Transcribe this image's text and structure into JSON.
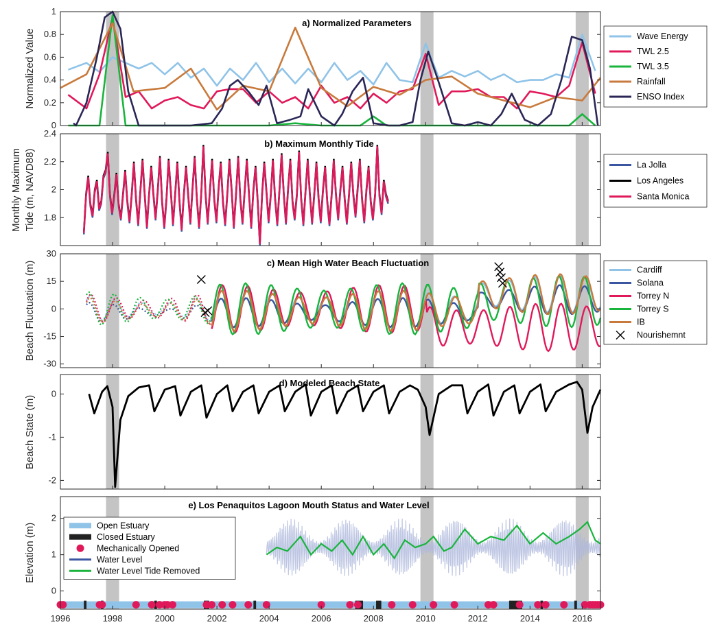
{
  "chart_data": [
    {
      "type": "line",
      "title": "a) Normalized Parameters",
      "ylabel": "Normalized Value",
      "xlim": [
        1996,
        2016.7
      ],
      "ylim": [
        0,
        1
      ],
      "yticks": [
        "0",
        "0.2",
        "0.4",
        "0.6",
        "0.8",
        "1"
      ],
      "legend_position": "outside-right",
      "series": [
        {
          "name": "Wave Energy",
          "color": "#8fc3e8",
          "x": [
            1996.3,
            1997,
            1997.5,
            1998,
            1998.5,
            1999,
            1999.5,
            2000,
            2000.5,
            2001,
            2001.5,
            2002,
            2002.5,
            2003,
            2003.5,
            2004,
            2004.5,
            2005,
            2005.5,
            2006,
            2006.5,
            2007,
            2007.5,
            2008,
            2008.5,
            2009,
            2009.5,
            2010,
            2010.5,
            2011,
            2011.5,
            2012,
            2012.5,
            2013,
            2013.5,
            2014,
            2014.5,
            2015,
            2015.5,
            2016,
            2016.5
          ],
          "y": [
            0.49,
            0.55,
            0.47,
            0.6,
            0.55,
            0.5,
            0.55,
            0.45,
            0.55,
            0.42,
            0.5,
            0.35,
            0.5,
            0.4,
            0.55,
            0.38,
            0.5,
            0.37,
            0.5,
            0.38,
            0.55,
            0.4,
            0.48,
            0.36,
            0.55,
            0.4,
            0.38,
            0.72,
            0.42,
            0.48,
            0.43,
            0.48,
            0.4,
            0.45,
            0.38,
            0.4,
            0.4,
            0.45,
            0.42,
            0.8,
            0.48
          ]
        },
        {
          "name": "TWL 2.5",
          "color": "#e0195a",
          "x": [
            1996.3,
            1997,
            1997.5,
            1998,
            1998.5,
            1999,
            1999.5,
            2000,
            2000.5,
            2001,
            2001.5,
            2002,
            2002.5,
            2003,
            2003.5,
            2004,
            2004.5,
            2005,
            2005.5,
            2006,
            2006.5,
            2007,
            2007.5,
            2008,
            2008.5,
            2009,
            2009.5,
            2010,
            2010.5,
            2011,
            2011.5,
            2012,
            2012.5,
            2013,
            2013.5,
            2014,
            2014.5,
            2015,
            2015.5,
            2016,
            2016.5
          ],
          "y": [
            0.27,
            0.15,
            0.45,
            0.95,
            0.25,
            0.3,
            0.15,
            0.22,
            0.25,
            0.18,
            0.15,
            0.3,
            0.32,
            0.32,
            0.2,
            0.3,
            0.2,
            0.25,
            0.15,
            0.35,
            0.2,
            0.25,
            0.15,
            0.28,
            0.2,
            0.3,
            0.32,
            0.63,
            0.18,
            0.3,
            0.3,
            0.32,
            0.25,
            0.25,
            0.15,
            0.3,
            0.28,
            0.25,
            0.35,
            0.73,
            0.28
          ]
        },
        {
          "name": "TWL 3.5",
          "color": "#18b43c",
          "x": [
            1996.3,
            1997,
            1997.5,
            1998,
            1998.5,
            1999,
            2000,
            2001,
            2002,
            2003,
            2004,
            2005,
            2006,
            2007,
            2007.5,
            2008,
            2008.5,
            2009,
            2010,
            2011,
            2012,
            2013,
            2014,
            2015,
            2015.5,
            2016,
            2016.5
          ],
          "y": [
            0,
            0,
            0,
            0.97,
            0,
            0,
            0,
            0,
            0,
            0,
            0,
            0.02,
            0,
            0,
            0,
            0.08,
            0,
            0,
            0,
            0,
            0,
            0,
            0,
            0,
            0,
            0.1,
            0
          ]
        },
        {
          "name": "Rainfall",
          "color": "#c87a3c",
          "x": [
            1996,
            1997,
            1998,
            1998.8,
            2000,
            2001,
            2002,
            2003,
            2004,
            2005,
            2006,
            2007,
            2008,
            2009,
            2010,
            2011,
            2012,
            2013,
            2014,
            2015,
            2016,
            2016.7
          ],
          "y": [
            0.33,
            0.45,
            0.9,
            0.3,
            0.33,
            0.5,
            0.14,
            0.35,
            0.3,
            0.86,
            0.33,
            0.17,
            0.34,
            0.27,
            0.4,
            0.43,
            0.28,
            0.22,
            0.16,
            0.25,
            0.22,
            0.42
          ]
        },
        {
          "name": "ENSO Index",
          "color": "#2a2656",
          "x": [
            1996.5,
            1996.6,
            1997,
            1997.4,
            1997.7,
            1998,
            1998.3,
            1998.6,
            1999,
            1999.5,
            2000,
            2000.6,
            2001,
            2001.8,
            2002.2,
            2002.5,
            2002.8,
            2003.2,
            2003.6,
            2003.9,
            2004.3,
            2004.8,
            2005.2,
            2005.5,
            2006,
            2006.5,
            2006.8,
            2007.2,
            2007.6,
            2008,
            2008.6,
            2009,
            2009.5,
            2009.8,
            2010.1,
            2010.5,
            2011,
            2011.5,
            2012,
            2012.5,
            2012.9,
            2013.3,
            2013.8,
            2014.3,
            2014.8,
            2015.2,
            2015.6,
            2016,
            2016.3,
            2016.6
          ],
          "y": [
            0.02,
            0,
            0.2,
            0.6,
            0.95,
            1,
            0.85,
            0.3,
            0,
            0,
            0,
            0,
            0,
            0.02,
            0.15,
            0.35,
            0.4,
            0.3,
            0.18,
            0.35,
            0.02,
            0.05,
            0.08,
            0.32,
            0.08,
            0,
            0.1,
            0.3,
            0.42,
            0.02,
            0,
            0,
            0.03,
            0.4,
            0.65,
            0.38,
            0.02,
            0,
            0.03,
            0,
            0.1,
            0.28,
            0.05,
            0,
            0.1,
            0.4,
            0.78,
            0.75,
            0.5,
            0
          ]
        }
      ]
    },
    {
      "type": "line",
      "title": "b) Maximum Monthly Tide",
      "ylabel": "Monthly Maximum Tide (m, NAVD88)",
      "ylabel_lines": [
        "Monthly Maximum",
        "Tide (m, NAVD88)"
      ],
      "xlim": [
        1996,
        2016.7
      ],
      "ylim": [
        1.6,
        2.4
      ],
      "yticks": [
        "1.8",
        "2",
        "2.2",
        "2.4"
      ],
      "legend_position": "outside-right",
      "series": [
        {
          "name": "La Jolla",
          "color": "#3a56a0"
        },
        {
          "name": "Los Angeles",
          "color": "#000000"
        },
        {
          "name": "Santa Monica",
          "color": "#e0195a"
        }
      ],
      "x_start": 1996.9,
      "x_step": 0.0833,
      "values_la_jolla": [
        1.68,
        1.95,
        2.08,
        1.88,
        1.8,
        1.98,
        2.05,
        1.85,
        1.9,
        2.08,
        2.12,
        2.25,
        1.95,
        1.82,
        1.95,
        2.1,
        1.88,
        1.78,
        1.95,
        2.12,
        1.9,
        1.76,
        1.95,
        2.18,
        1.92,
        1.74,
        1.98,
        2.2,
        1.95,
        1.72,
        1.95,
        2.15,
        1.95,
        1.78,
        1.98,
        2.22,
        1.9,
        1.72,
        1.92,
        2.2,
        1.98,
        1.74,
        1.95,
        2.18,
        1.9,
        1.7,
        1.95,
        2.15,
        1.95,
        1.75,
        2.0,
        2.22,
        1.92,
        1.72,
        1.95,
        2.3,
        1.95,
        1.75,
        1.98,
        2.2,
        1.92,
        1.76,
        2.0,
        2.18,
        1.9,
        1.74,
        1.95,
        2.2,
        1.98,
        1.72,
        1.95,
        2.22,
        1.92,
        1.75,
        1.98,
        2.2,
        1.95,
        1.72,
        1.98,
        2.15,
        1.9,
        1.6,
        1.95,
        2.18,
        1.98,
        1.76,
        1.95,
        2.2,
        1.92,
        1.74,
        1.98,
        2.24,
        1.95,
        1.75,
        2.0,
        2.2,
        1.9,
        1.78,
        1.95,
        2.26,
        1.92,
        1.74,
        1.98,
        2.2,
        1.95,
        1.75,
        1.95,
        2.18,
        1.92,
        1.76,
        1.98,
        2.15,
        1.9,
        1.74,
        1.95,
        2.2,
        1.95,
        1.78,
        1.98,
        2.15,
        1.92,
        1.75,
        1.95,
        2.18,
        1.95,
        1.8,
        2.0,
        2.2,
        1.92,
        1.76,
        1.98,
        2.15,
        1.9,
        1.78,
        1.95,
        2.3,
        1.95,
        1.82,
        2.05,
        1.95,
        1.9
      ],
      "values_los_angeles_offset": 0.02,
      "values_santa_monica_offset": 0.01
    },
    {
      "type": "line",
      "title": "c) Mean High Water Beach Fluctuation",
      "ylabel": "Beach Fluctuation (m)",
      "xlim": [
        1996,
        2016.7
      ],
      "ylim": [
        -32,
        30
      ],
      "yticks": [
        "-30",
        "-15",
        "0",
        "15",
        "30"
      ],
      "legend_position": "outside-right",
      "series": [
        {
          "name": "Cardiff",
          "color": "#8fc3e8"
        },
        {
          "name": "Solana",
          "color": "#3a56a0"
        },
        {
          "name": "Torrey N",
          "color": "#e0195a"
        },
        {
          "name": "Torrey S",
          "color": "#18b43c"
        },
        {
          "name": "IB",
          "color": "#c87a3c"
        },
        {
          "name": "Nourishemnt",
          "color": "#000000",
          "marker": "x",
          "x": [
            2001.4,
            2001.55,
            2001.65,
            2012.8,
            2012.85,
            2012.9,
            2012.95
          ],
          "y": [
            16,
            -2,
            -1,
            23,
            20,
            17,
            14
          ]
        }
      ]
    },
    {
      "type": "line",
      "title": "d) Modeled Beach State",
      "ylabel": "Beach State (m)",
      "xlim": [
        1996,
        2016.7
      ],
      "ylim": [
        -2.2,
        0.45
      ],
      "yticks": [
        "-2",
        "-1",
        "0"
      ],
      "series": [
        {
          "name": "",
          "color": "#000000",
          "x": [
            1997.1,
            1997.3,
            1997.6,
            1997.8,
            1998.0,
            1998.1,
            1998.3,
            1998.6,
            1999.0,
            1999.4,
            1999.6,
            2000.0,
            2000.4,
            2000.6,
            2001.0,
            2001.4,
            2001.6,
            2002.0,
            2002.4,
            2002.6,
            2003.0,
            2003.4,
            2003.6,
            2004.0,
            2004.4,
            2004.6,
            2005.0,
            2005.4,
            2005.6,
            2006.0,
            2006.4,
            2006.6,
            2007.0,
            2007.4,
            2007.6,
            2008.0,
            2008.4,
            2008.6,
            2009.0,
            2009.4,
            2009.7,
            2010.0,
            2010.15,
            2010.5,
            2011.0,
            2011.4,
            2011.6,
            2012.0,
            2012.4,
            2012.6,
            2013.0,
            2013.4,
            2013.6,
            2014.0,
            2014.4,
            2014.6,
            2015.0,
            2015.5,
            2015.8,
            2016.0,
            2016.2,
            2016.4,
            2016.7
          ],
          "y": [
            0,
            -0.45,
            0.05,
            0.18,
            -0.3,
            -2.15,
            -0.6,
            -0.05,
            0.15,
            0.2,
            -0.4,
            0.1,
            0.18,
            -0.5,
            0.05,
            0.2,
            -0.55,
            0.0,
            0.2,
            -0.4,
            0.05,
            0.2,
            -0.45,
            0.05,
            0.2,
            -0.4,
            0.05,
            0.22,
            -0.5,
            0.05,
            0.2,
            -0.45,
            0.05,
            0.2,
            -0.4,
            0.05,
            0.2,
            -0.45,
            0.05,
            0.2,
            0.1,
            -0.3,
            -0.95,
            0.0,
            0.2,
            0.2,
            -0.45,
            0.05,
            0.22,
            -0.5,
            0.05,
            0.2,
            -0.45,
            0.05,
            0.22,
            -0.4,
            0.05,
            0.22,
            0.28,
            0.1,
            -0.9,
            -0.3,
            0.1
          ]
        }
      ]
    },
    {
      "type": "line",
      "title": "e) Los Penaquitos Lagoon Mouth Status and Water Level",
      "ylabel": "Elevation (m)",
      "xlim": [
        1996,
        2016.7
      ],
      "ylim": [
        -0.5,
        2.6
      ],
      "yticks": [
        "0",
        "1",
        "2"
      ],
      "xticks": [
        "1996",
        "1998",
        "2000",
        "2002",
        "2004",
        "2006",
        "2008",
        "2010",
        "2012",
        "2014",
        "2016"
      ],
      "legend_position": "top-left",
      "series": [
        {
          "name": "Open Estuary",
          "color": "#8fc3e8"
        },
        {
          "name": "Closed Estuary",
          "color": "#222222"
        },
        {
          "name": "Mechanically Opened",
          "color": "#e0195a",
          "marker": "circle",
          "x": [
            1996.0,
            1996.1,
            1997.5,
            1997.6,
            1998.9,
            1999.5,
            1999.8,
            2000.0,
            2000.1,
            2000.3,
            2001.6,
            2001.8,
            2002.2,
            2002.6,
            2003.2,
            2003.9,
            2006.0,
            2007.1,
            2007.4,
            2008.7,
            2009.5,
            2010.3,
            2011.1,
            2012.4,
            2012.6,
            2013.6,
            2014.3,
            2014.6,
            2015.3,
            2016.1,
            2016.3,
            2016.4,
            2016.5,
            2016.6,
            2016.7
          ],
          "y": [
            -0.38,
            -0.38,
            -0.38,
            -0.38,
            -0.38,
            -0.38,
            -0.38,
            -0.38,
            -0.38,
            -0.38,
            -0.38,
            -0.38,
            -0.38,
            -0.38,
            -0.38,
            -0.38,
            -0.38,
            -0.38,
            -0.38,
            -0.38,
            -0.38,
            -0.38,
            -0.38,
            -0.38,
            -0.38,
            -0.38,
            -0.38,
            -0.38,
            -0.38,
            -0.38,
            -0.38,
            -0.38,
            -0.38,
            -0.38,
            -0.38
          ]
        },
        {
          "name": "Water Level",
          "color": "#3a56a0"
        },
        {
          "name": "Water Level Tide Removed",
          "color": "#18b43c",
          "x": [
            2003.9,
            2004.3,
            2004.7,
            2005.2,
            2005.6,
            2006.0,
            2006.4,
            2006.8,
            2007.2,
            2007.6,
            2008.0,
            2008.4,
            2008.8,
            2009.2,
            2009.6,
            2010.0,
            2010.3,
            2010.7,
            2011.0,
            2011.5,
            2012.0,
            2012.5,
            2013.0,
            2013.5,
            2014.0,
            2014.5,
            2015.0,
            2015.5,
            2015.9,
            2016.2,
            2016.5,
            2016.7
          ],
          "y": [
            1.0,
            1.2,
            1.1,
            1.5,
            1.0,
            1.3,
            1.1,
            1.4,
            1.0,
            1.5,
            1.0,
            1.3,
            0.9,
            1.4,
            1.2,
            1.3,
            1.5,
            1.1,
            1.2,
            1.7,
            1.3,
            1.5,
            1.4,
            1.8,
            1.3,
            1.6,
            1.3,
            1.5,
            1.7,
            1.9,
            1.4,
            1.3
          ]
        }
      ],
      "closed_intervals": [
        [
          1996.9,
          1997.0
        ],
        [
          1997.55,
          1997.65
        ],
        [
          1999.6,
          1999.7
        ],
        [
          2001.5,
          2001.7
        ],
        [
          2003.4,
          2003.5
        ],
        [
          2007.3,
          2007.6
        ],
        [
          2008.1,
          2008.3
        ],
        [
          2013.2,
          2013.7
        ],
        [
          2014.4,
          2014.5
        ],
        [
          2015.7,
          2015.8
        ]
      ]
    }
  ],
  "shaded_periods": [
    [
      1997.75,
      1998.25
    ],
    [
      2009.8,
      2010.3
    ],
    [
      2015.75,
      2016.25
    ]
  ]
}
